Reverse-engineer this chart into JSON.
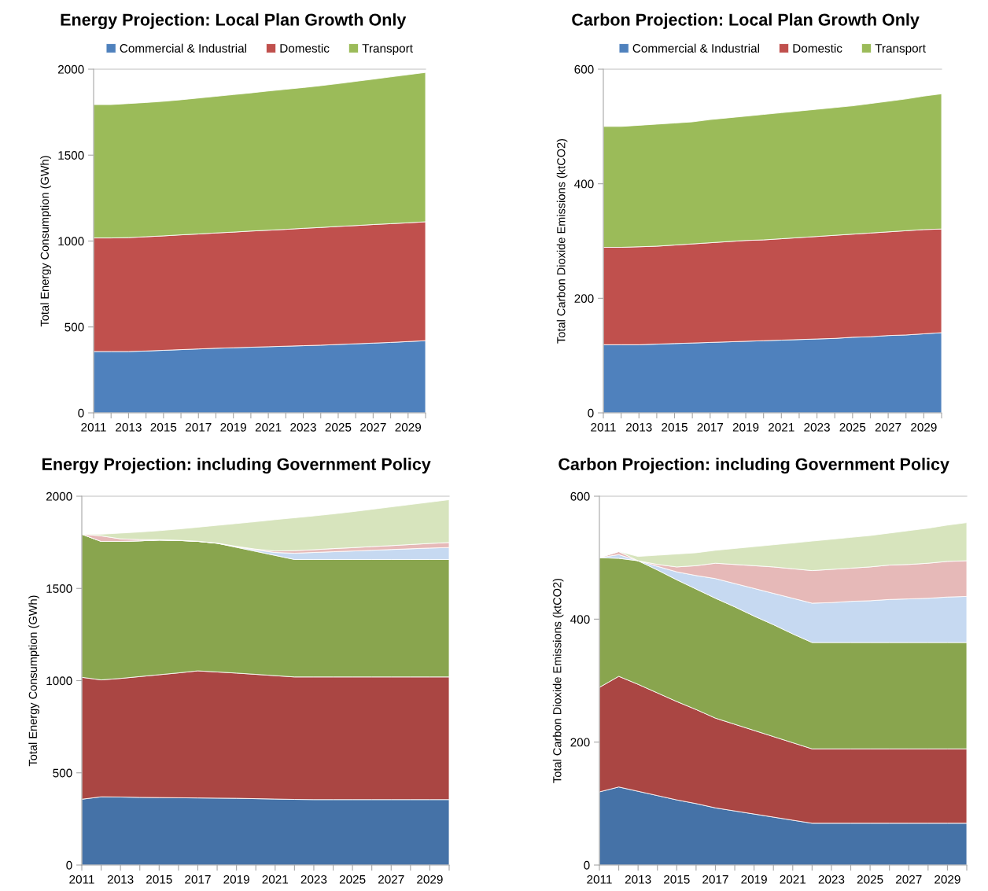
{
  "chart_data": [
    {
      "type": "area",
      "stacked": true,
      "title": "Energy Projection: Local Plan Growth Only",
      "ylabel": "Total Energy Consumption (GWh)",
      "x": [
        2011,
        2012,
        2013,
        2014,
        2015,
        2016,
        2017,
        2018,
        2019,
        2020,
        2021,
        2022,
        2023,
        2024,
        2025,
        2026,
        2027,
        2028,
        2029,
        2030
      ],
      "xlim": [
        2011,
        2030
      ],
      "xticks": [
        2011,
        {
          "value": 2012,
          "label": null
        },
        2013,
        {
          "value": 2014,
          "label": null
        },
        2015,
        {
          "value": 2016,
          "label": null
        },
        2017,
        {
          "value": 2018,
          "label": null
        },
        2019,
        {
          "value": 2020,
          "label": null
        },
        2021,
        {
          "value": 2022,
          "label": null
        },
        2023,
        {
          "value": 2024,
          "label": null
        },
        2025,
        {
          "value": 2026,
          "label": null
        },
        2027,
        {
          "value": 2028,
          "label": null
        },
        2029,
        {
          "value": 2030,
          "label": null
        }
      ],
      "ylim": [
        0,
        2000
      ],
      "yticks": [
        0,
        500,
        1000,
        1500,
        2000
      ],
      "legend": "top",
      "series": [
        {
          "name": "Commercial & Industrial",
          "color": "#4f81bd",
          "values": [
            357,
            357,
            357,
            360,
            364,
            368,
            372,
            376,
            379,
            382,
            385,
            388,
            391,
            394,
            398,
            402,
            406,
            410,
            415,
            420
          ]
        },
        {
          "name": "Domestic",
          "color": "#c0504d",
          "values": [
            661,
            661,
            663,
            665,
            666,
            668,
            669,
            671,
            673,
            676,
            678,
            680,
            683,
            685,
            687,
            688,
            690,
            691,
            691,
            692
          ]
        },
        {
          "name": "Transport",
          "color": "#9bbb59",
          "values": [
            776,
            776,
            780,
            781,
            783,
            786,
            791,
            795,
            800,
            804,
            810,
            815,
            819,
            825,
            831,
            839,
            846,
            854,
            862,
            869
          ]
        }
      ]
    },
    {
      "type": "area",
      "stacked": true,
      "title": "Carbon Projection: Local Plan Growth Only",
      "ylabel": "Total Carbon Dioxide Emissions (ktCO2)",
      "x": [
        2011,
        2012,
        2013,
        2014,
        2015,
        2016,
        2017,
        2018,
        2019,
        2020,
        2021,
        2022,
        2023,
        2024,
        2025,
        2026,
        2027,
        2028,
        2029,
        2030
      ],
      "xlim": [
        2011,
        2030
      ],
      "xticks": [
        2011,
        {
          "value": 2012,
          "label": null
        },
        2013,
        {
          "value": 2014,
          "label": null
        },
        2015,
        {
          "value": 2016,
          "label": null
        },
        2017,
        {
          "value": 2018,
          "label": null
        },
        2019,
        {
          "value": 2020,
          "label": null
        },
        2021,
        {
          "value": 2022,
          "label": null
        },
        2023,
        {
          "value": 2024,
          "label": null
        },
        2025,
        {
          "value": 2026,
          "label": null
        },
        2027,
        {
          "value": 2028,
          "label": null
        },
        2029,
        {
          "value": 2030,
          "label": null
        }
      ],
      "ylim": [
        0,
        600
      ],
      "yticks": [
        0,
        200,
        400,
        600
      ],
      "legend": "top",
      "series": [
        {
          "name": "Commercial & Industrial",
          "color": "#4f81bd",
          "values": [
            119,
            119,
            119,
            120,
            121,
            122,
            123,
            124,
            125,
            126,
            127,
            128,
            129,
            130,
            132,
            133,
            135,
            136,
            138,
            140
          ]
        },
        {
          "name": "Domestic",
          "color": "#c0504d",
          "values": [
            170,
            170,
            171,
            171,
            172,
            173,
            174,
            175,
            176,
            176,
            177,
            178,
            179,
            180,
            180,
            181,
            181,
            182,
            182,
            181
          ]
        },
        {
          "name": "Transport",
          "color": "#9bbb59",
          "values": [
            211,
            211,
            212,
            213,
            213,
            213,
            215,
            216,
            217,
            219,
            220,
            221,
            222,
            223,
            224,
            226,
            228,
            230,
            233,
            236
          ]
        }
      ]
    },
    {
      "type": "area",
      "stacked": true,
      "title": "Energy Projection: including Government Policy",
      "ylabel": "Total Energy Consumption (GWh)",
      "x": [
        2011,
        2012,
        2013,
        2014,
        2015,
        2016,
        2017,
        2018,
        2019,
        2020,
        2021,
        2022,
        2023,
        2024,
        2025,
        2026,
        2027,
        2028,
        2029,
        2030
      ],
      "xlim": [
        2011,
        2030
      ],
      "xticks": [
        2011,
        {
          "value": 2012,
          "label": null
        },
        2013,
        {
          "value": 2014,
          "label": null
        },
        2015,
        {
          "value": 2016,
          "label": null
        },
        2017,
        {
          "value": 2018,
          "label": null
        },
        2019,
        {
          "value": 2020,
          "label": null
        },
        2021,
        {
          "value": 2022,
          "label": null
        },
        2023,
        {
          "value": 2024,
          "label": null
        },
        2025,
        {
          "value": 2026,
          "label": null
        },
        2027,
        {
          "value": 2028,
          "label": null
        },
        2029,
        {
          "value": 2030,
          "label": null
        }
      ],
      "ylim": [
        0,
        2000
      ],
      "yticks": [
        0,
        500,
        1000,
        1500,
        2000
      ],
      "series": [
        {
          "color": "#4572a7",
          "values": [
            357,
            370,
            369,
            367,
            366,
            365,
            364,
            363,
            362,
            360,
            358,
            356,
            355,
            355,
            355,
            355,
            355,
            355,
            355,
            355
          ]
        },
        {
          "color": "#aa4643",
          "values": [
            661,
            634,
            643,
            655,
            666,
            677,
            689,
            684,
            679,
            674,
            669,
            664,
            665,
            665,
            665,
            665,
            665,
            665,
            665,
            665
          ]
        },
        {
          "color": "#89a54e",
          "values": [
            776,
            751,
            743,
            736,
            730,
            718,
            702,
            698,
            682,
            667,
            652,
            637,
            637,
            637,
            637,
            637,
            637,
            637,
            637,
            637
          ]
        },
        {
          "color": "#c6d9f1",
          "values": [
            0,
            0,
            0,
            0,
            0,
            0,
            0,
            0,
            3,
            8,
            16,
            34,
            38,
            42,
            46,
            50,
            54,
            58,
            62,
            65
          ]
        },
        {
          "color": "#e6b9b8",
          "values": [
            0,
            30,
            14,
            7,
            2,
            1,
            1,
            1,
            2,
            4,
            8,
            14,
            15,
            17,
            18,
            20,
            21,
            23,
            25,
            27
          ]
        },
        {
          "color": "#d7e4bd",
          "values": [
            0,
            9,
            31,
            41,
            49,
            61,
            76,
            96,
            124,
            149,
            170,
            178,
            183,
            188,
            195,
            202,
            210,
            217,
            224,
            232
          ]
        }
      ]
    },
    {
      "type": "area",
      "stacked": true,
      "title": "Carbon Projection: including Government Policy",
      "ylabel": "Total Carbon Dioxide Emissions (ktCO2)",
      "x": [
        2011,
        2012,
        2013,
        2014,
        2015,
        2016,
        2017,
        2018,
        2019,
        2020,
        2021,
        2022,
        2023,
        2024,
        2025,
        2026,
        2027,
        2028,
        2029,
        2030
      ],
      "xlim": [
        2011,
        2030
      ],
      "xticks": [
        2011,
        {
          "value": 2012,
          "label": null
        },
        2013,
        {
          "value": 2014,
          "label": null
        },
        2015,
        {
          "value": 2016,
          "label": null
        },
        2017,
        {
          "value": 2018,
          "label": null
        },
        2019,
        {
          "value": 2020,
          "label": null
        },
        2021,
        {
          "value": 2022,
          "label": null
        },
        2023,
        {
          "value": 2024,
          "label": null
        },
        2025,
        {
          "value": 2026,
          "label": null
        },
        2027,
        {
          "value": 2028,
          "label": null
        },
        2029,
        {
          "value": 2030,
          "label": null
        }
      ],
      "ylim": [
        0,
        600
      ],
      "yticks": [
        0,
        200,
        400,
        600
      ],
      "series": [
        {
          "color": "#4572a7",
          "values": [
            119,
            127,
            120,
            113,
            106,
            100,
            93,
            88,
            83,
            78,
            73,
            68,
            68,
            68,
            68,
            68,
            68,
            68,
            68,
            68
          ]
        },
        {
          "color": "#aa4643",
          "values": [
            170,
            180,
            174,
            167,
            160,
            153,
            146,
            141,
            136,
            131,
            126,
            121,
            121,
            121,
            121,
            121,
            121,
            121,
            121,
            121
          ]
        },
        {
          "color": "#89a54e",
          "values": [
            211,
            192,
            201,
            200,
            198,
            196,
            195,
            191,
            186,
            182,
            177,
            173,
            173,
            173,
            173,
            173,
            173,
            173,
            173,
            173
          ]
        },
        {
          "color": "#c6d9f1",
          "values": [
            0,
            6,
            0,
            6,
            13,
            22,
            32,
            38,
            45,
            51,
            58,
            64,
            65,
            67,
            68,
            70,
            71,
            72,
            74,
            75
          ]
        },
        {
          "color": "#e6b9b8",
          "values": [
            0,
            5,
            0,
            3,
            8,
            16,
            25,
            31,
            37,
            43,
            48,
            53,
            54,
            54,
            55,
            56,
            56,
            57,
            58,
            58
          ]
        },
        {
          "color": "#d7e4bd",
          "values": [
            0,
            0,
            7,
            15,
            21,
            21,
            21,
            26,
            31,
            36,
            42,
            48,
            49,
            50,
            51,
            52,
            55,
            57,
            59,
            62
          ]
        }
      ]
    }
  ]
}
